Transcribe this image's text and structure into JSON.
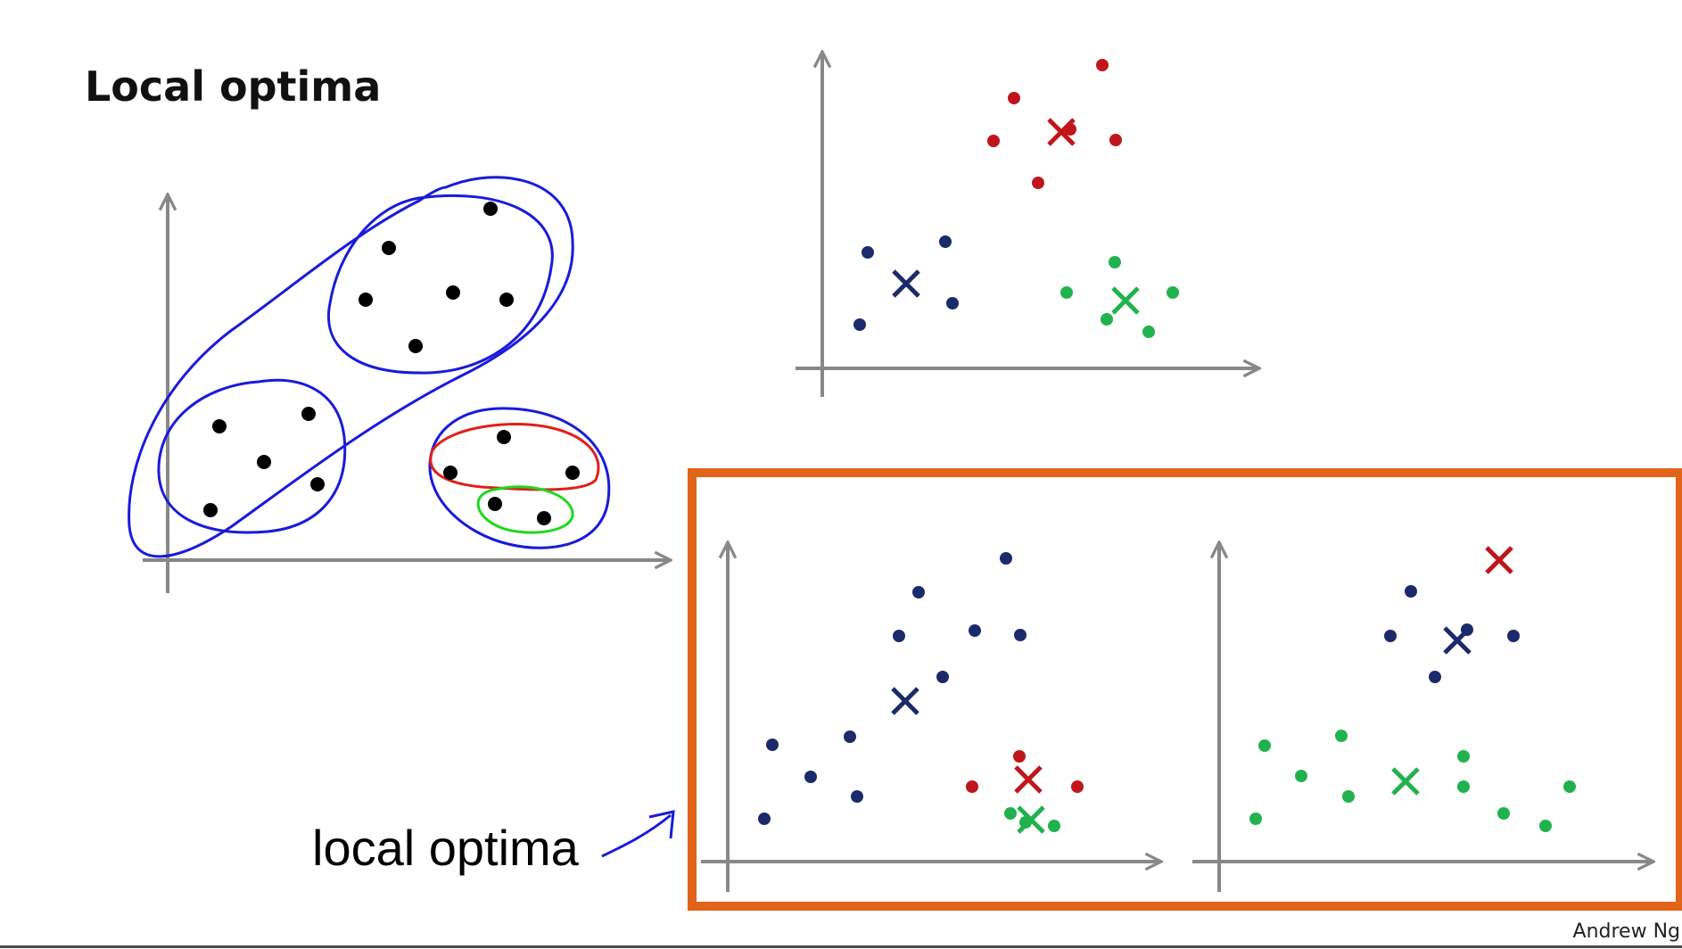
{
  "slide": {
    "title": "Local optima",
    "annotation": "local optima",
    "author": "Andrew Ng"
  },
  "colors": {
    "axis": "#888888",
    "points": "#000000",
    "ink_blue": "#1a1adb",
    "ink_red": "#e0201a",
    "ink_green": "#1ed81e",
    "cluster_navy": "#1b2a6b",
    "cluster_red": "#c0161b",
    "cluster_green": "#21b24e",
    "highlight_box": "#e0641a"
  },
  "icons": {
    "centroid_marker": "x-mark",
    "axis_arrow": "arrowhead",
    "hand_drawn_arrow": "arrow-pointer"
  },
  "panels": [
    {
      "id": "original-data",
      "description_visible": false
    },
    {
      "id": "good-clustering"
    },
    {
      "id": "local-optimum-1"
    },
    {
      "id": "local-optimum-2"
    }
  ]
}
